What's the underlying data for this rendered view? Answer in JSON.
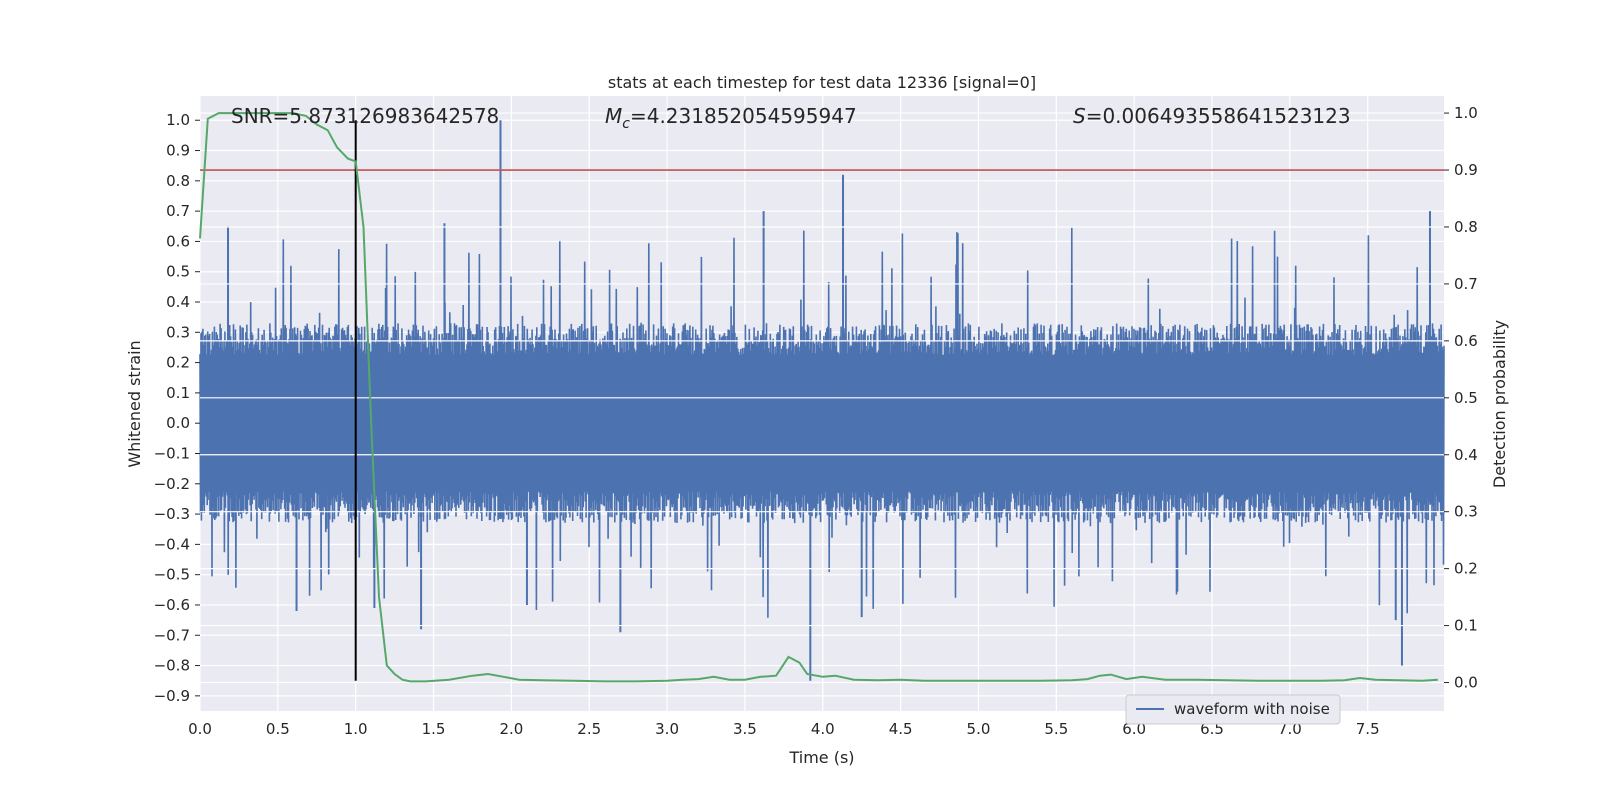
{
  "chart_data": {
    "type": "line",
    "title": "stats at each timestep for test data 12336 [signal=0]",
    "xlabel": "Time (s)",
    "ylabel": "Whitened strain",
    "y2label": "Detection probability",
    "xlim": [
      0.0,
      7.99
    ],
    "ylim": [
      -0.95,
      1.08
    ],
    "y2lim": [
      -0.05,
      1.03
    ],
    "x_ticks": [
      "0.0",
      "0.5",
      "1.0",
      "1.5",
      "2.0",
      "2.5",
      "3.0",
      "3.5",
      "4.0",
      "4.5",
      "5.0",
      "5.5",
      "6.0",
      "6.5",
      "7.0",
      "7.5"
    ],
    "y_ticks": [
      "1.0",
      "0.9",
      "0.8",
      "0.7",
      "0.6",
      "0.5",
      "0.4",
      "0.3",
      "0.2",
      "0.1",
      "0.0",
      "-0.1",
      "-0.2",
      "-0.3",
      "-0.4",
      "-0.5",
      "-0.6",
      "-0.7",
      "-0.8",
      "-0.9"
    ],
    "y2_ticks": [
      "1.0",
      "0.9",
      "0.8",
      "0.7",
      "0.6",
      "0.5",
      "0.4",
      "0.3",
      "0.2",
      "0.1",
      "0.0"
    ],
    "grid": true,
    "legend": {
      "placement": "lower-right",
      "entries": [
        "waveform with noise"
      ]
    },
    "annotations": {
      "snr": "SNR=5.873126983642578",
      "mc_symbol": "M",
      "mc_sub": "c",
      "mc_value": "=4.231852054595947",
      "s_symbol": "S",
      "s_value": "=0.006493558641523123"
    },
    "threshold_line": {
      "axis": "y2",
      "value": 0.9,
      "color": "#c44e52"
    },
    "marker_line": {
      "x": 1.0,
      "y_range": [
        -0.85,
        1.0
      ],
      "color": "#000000"
    },
    "series": [
      {
        "name": "waveform with noise",
        "axis": "y",
        "color": "#4c72b0",
        "noise_band": {
          "typical_amplitude": 0.3,
          "peak_amplitude": 0.65
        },
        "spikes": [
          {
            "x": 1.93,
            "y": 1.0
          },
          {
            "x": 4.13,
            "y": 0.82
          },
          {
            "x": 3.62,
            "y": 0.7
          },
          {
            "x": 7.9,
            "y": 0.7
          },
          {
            "x": 1.57,
            "y": 0.66
          },
          {
            "x": 0.18,
            "y": 0.65
          },
          {
            "x": 3.92,
            "y": -0.85
          },
          {
            "x": 7.72,
            "y": -0.8
          },
          {
            "x": 1.42,
            "y": -0.68
          },
          {
            "x": 2.7,
            "y": -0.69
          },
          {
            "x": 4.25,
            "y": -0.64
          },
          {
            "x": 0.62,
            "y": -0.62
          },
          {
            "x": 7.68,
            "y": -0.65
          },
          {
            "x": 1.12,
            "y": -0.61
          },
          {
            "x": 2.1,
            "y": -0.6
          }
        ]
      },
      {
        "name": "",
        "axis": "y2",
        "color": "#55a868",
        "x": [
          0.0,
          0.05,
          0.12,
          0.2,
          0.3,
          0.4,
          0.5,
          0.6,
          0.68,
          0.75,
          0.82,
          0.88,
          0.95,
          1.0,
          1.05,
          1.1,
          1.15,
          1.2,
          1.25,
          1.3,
          1.35,
          1.45,
          1.6,
          1.75,
          1.85,
          1.95,
          2.05,
          2.2,
          2.4,
          2.6,
          2.8,
          3.0,
          3.1,
          3.2,
          3.3,
          3.4,
          3.5,
          3.6,
          3.7,
          3.78,
          3.85,
          3.9,
          4.0,
          4.08,
          4.2,
          4.35,
          4.5,
          4.65,
          4.8,
          5.0,
          5.2,
          5.4,
          5.6,
          5.7,
          5.78,
          5.85,
          5.95,
          6.05,
          6.2,
          6.4,
          6.6,
          6.8,
          7.0,
          7.2,
          7.35,
          7.45,
          7.55,
          7.7,
          7.85,
          7.95
        ],
        "y": [
          0.78,
          0.99,
          1.0,
          1.0,
          1.0,
          1.0,
          1.0,
          1.0,
          0.995,
          0.98,
          0.97,
          0.94,
          0.92,
          0.915,
          0.8,
          0.45,
          0.15,
          0.03,
          0.015,
          0.005,
          0.002,
          0.002,
          0.005,
          0.012,
          0.015,
          0.01,
          0.005,
          0.004,
          0.003,
          0.002,
          0.002,
          0.003,
          0.005,
          0.006,
          0.01,
          0.005,
          0.005,
          0.01,
          0.012,
          0.045,
          0.035,
          0.015,
          0.01,
          0.012,
          0.005,
          0.004,
          0.005,
          0.003,
          0.003,
          0.003,
          0.003,
          0.003,
          0.004,
          0.006,
          0.012,
          0.014,
          0.006,
          0.01,
          0.005,
          0.005,
          0.004,
          0.003,
          0.003,
          0.003,
          0.004,
          0.008,
          0.005,
          0.004,
          0.003,
          0.005
        ]
      }
    ]
  }
}
